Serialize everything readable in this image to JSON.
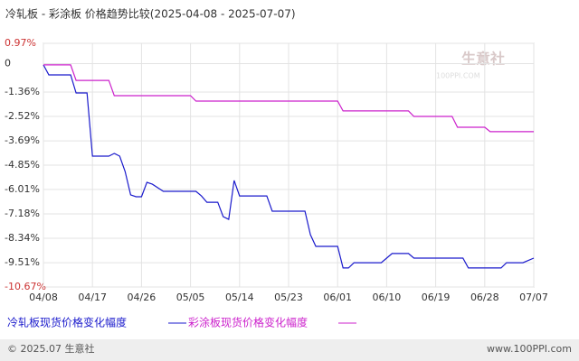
{
  "chart_data": {
    "type": "line",
    "title": "冷轧板 - 彩涂板 价格趋势比较(2025-04-08 - 2025-07-07)",
    "xlim": [
      "04/08",
      "07/07"
    ],
    "xticks": [
      "04/08",
      "04/17",
      "04/26",
      "05/05",
      "05/14",
      "05/23",
      "06/01",
      "06/10",
      "06/19",
      "06/28",
      "07/07"
    ],
    "ylim": [
      -10.67,
      0.97
    ],
    "yticks": [
      {
        "value": 0.97,
        "label": "0.97%"
      },
      0,
      {
        "value": -1.36,
        "label": "-1.36%"
      },
      {
        "value": -2.52,
        "label": "-2.52%"
      },
      {
        "value": -3.69,
        "label": "-3.69%"
      },
      {
        "value": -4.85,
        "label": "-4.85%"
      },
      {
        "value": -6.01,
        "label": "-6.01%"
      },
      {
        "value": -7.18,
        "label": "-7.18%"
      },
      {
        "value": -8.34,
        "label": "-8.34%"
      },
      {
        "value": -9.51,
        "label": "-9.51%"
      },
      {
        "value": -10.67,
        "label": "-10.67%"
      }
    ],
    "grid": true,
    "series": [
      {
        "name": "冷轧板现货价格变化幅度",
        "color": "#1a1acc",
        "x": [
          "04/08",
          "04/09",
          "04/13",
          "04/14",
          "04/16",
          "04/17",
          "04/20",
          "04/21",
          "04/22",
          "04/23",
          "04/24",
          "04/25",
          "04/26",
          "04/27",
          "04/28",
          "04/30",
          "05/06",
          "05/07",
          "05/08",
          "05/10",
          "05/11",
          "05/12",
          "05/13",
          "05/14",
          "05/19",
          "05/20",
          "05/26",
          "05/27",
          "05/28",
          "06/01",
          "06/02",
          "06/03",
          "06/04",
          "06/09",
          "06/11",
          "06/14",
          "06/15",
          "06/24",
          "06/25",
          "07/01",
          "07/02",
          "07/05",
          "07/07"
        ],
        "values": [
          -0.06,
          -0.54,
          -0.54,
          -1.4,
          -1.4,
          -4.42,
          -4.42,
          -4.29,
          -4.42,
          -5.15,
          -6.27,
          -6.36,
          -6.36,
          -5.67,
          -5.76,
          -6.1,
          -6.1,
          -6.32,
          -6.62,
          -6.62,
          -7.31,
          -7.44,
          -5.58,
          -6.32,
          -6.32,
          -7.05,
          -7.05,
          -8.17,
          -8.73,
          -8.73,
          -9.76,
          -9.76,
          -9.51,
          -9.51,
          -9.07,
          -9.07,
          -9.29,
          -9.29,
          -9.76,
          -9.76,
          -9.51,
          -9.51,
          -9.29
        ]
      },
      {
        "name": "彩涂板现货价格变化幅度",
        "color": "#cc22cc",
        "x": [
          "04/08",
          "04/13",
          "04/14",
          "04/20",
          "04/21",
          "05/05",
          "05/06",
          "06/01",
          "06/02",
          "06/14",
          "06/15",
          "06/22",
          "06/23",
          "06/28",
          "06/29",
          "07/07"
        ],
        "values": [
          -0.06,
          -0.06,
          -0.8,
          -0.8,
          -1.53,
          -1.53,
          -1.79,
          -1.79,
          -2.26,
          -2.26,
          -2.52,
          -2.52,
          -3.04,
          -3.04,
          -3.25,
          -3.25
        ]
      }
    ],
    "watermark": {
      "name": "生意社",
      "site": "100PPI.COM"
    },
    "footer": {
      "copyright": "© 2025.07 生意社",
      "url": "www.100PPI.com"
    }
  }
}
